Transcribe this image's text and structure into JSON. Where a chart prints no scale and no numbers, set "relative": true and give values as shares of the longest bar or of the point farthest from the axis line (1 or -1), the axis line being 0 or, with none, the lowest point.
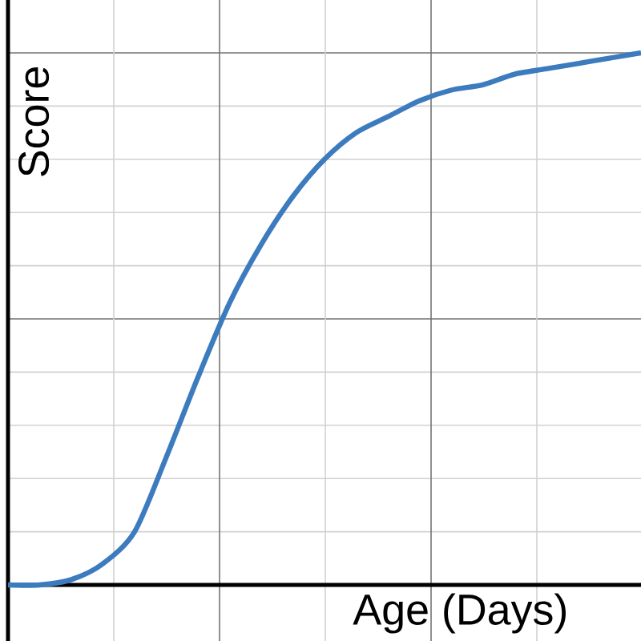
{
  "chart_data": {
    "type": "line",
    "xlabel": "Age (Days)",
    "ylabel": "Score",
    "relative": true,
    "grid": true,
    "categories": [
      null,
      null,
      null,
      null,
      null,
      null,
      null,
      null,
      null,
      null,
      null,
      null,
      null,
      null,
      null,
      null,
      null,
      null,
      null,
      null,
      null
    ],
    "series": [
      {
        "color": "#3d7bbf",
        "values": [
          0,
          0,
          0.01,
          0.04,
          0.1,
          0.24,
          0.39,
          0.53,
          0.64,
          0.73,
          0.8,
          0.85,
          0.88,
          0.91,
          0.93,
          0.94,
          0.96,
          0.97,
          0.98,
          0.99,
          1.0
        ]
      }
    ]
  }
}
